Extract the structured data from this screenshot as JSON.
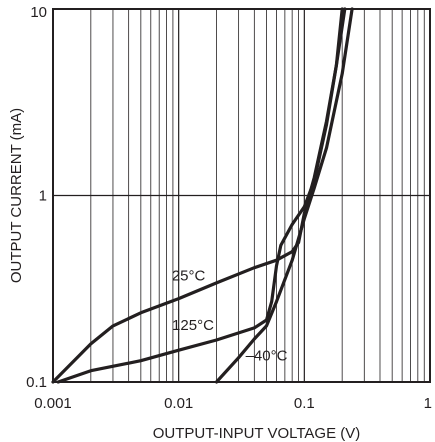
{
  "chart_data": {
    "type": "line",
    "xlabel": "OUTPUT-INPUT VOLTAGE (V)",
    "ylabel": "OUTPUT CURRENT (mA)",
    "x_scale": "log",
    "y_scale": "log",
    "xlim": [
      0.001,
      1
    ],
    "ylim": [
      0.1,
      10
    ],
    "x_ticks": [
      {
        "value": 0.001,
        "label": "0.001"
      },
      {
        "value": 0.01,
        "label": "0.01"
      },
      {
        "value": 0.1,
        "label": "0.1"
      },
      {
        "value": 1,
        "label": "1"
      }
    ],
    "y_ticks": [
      {
        "value": 0.1,
        "label": "0.1"
      },
      {
        "value": 1,
        "label": "1"
      },
      {
        "value": 10,
        "label": "10"
      }
    ],
    "grid": true,
    "series": [
      {
        "name": "25°C",
        "points": [
          [
            0.001,
            0.1
          ],
          [
            0.002,
            0.16
          ],
          [
            0.003,
            0.2
          ],
          [
            0.005,
            0.235
          ],
          [
            0.01,
            0.28
          ],
          [
            0.02,
            0.34
          ],
          [
            0.04,
            0.41
          ],
          [
            0.06,
            0.45
          ],
          [
            0.08,
            0.5
          ],
          [
            0.09,
            0.56
          ],
          [
            0.1,
            0.8
          ],
          [
            0.12,
            1.25
          ],
          [
            0.15,
            2.5
          ],
          [
            0.18,
            5.0
          ],
          [
            0.21,
            10.0
          ]
        ]
      },
      {
        "name": "125°C",
        "points": [
          [
            0.0011,
            0.1
          ],
          [
            0.002,
            0.115
          ],
          [
            0.005,
            0.13
          ],
          [
            0.01,
            0.148
          ],
          [
            0.02,
            0.168
          ],
          [
            0.04,
            0.195
          ],
          [
            0.05,
            0.215
          ],
          [
            0.055,
            0.27
          ],
          [
            0.06,
            0.42
          ],
          [
            0.065,
            0.54
          ],
          [
            0.08,
            0.7
          ],
          [
            0.1,
            0.87
          ],
          [
            0.12,
            1.2
          ],
          [
            0.15,
            2.4
          ],
          [
            0.18,
            5.0
          ],
          [
            0.2,
            10.0
          ]
        ]
      },
      {
        "name": "-40°C",
        "points": [
          [
            0.02,
            0.1
          ],
          [
            0.03,
            0.135
          ],
          [
            0.04,
            0.17
          ],
          [
            0.05,
            0.2
          ],
          [
            0.06,
            0.27
          ],
          [
            0.08,
            0.45
          ],
          [
            0.1,
            0.75
          ],
          [
            0.12,
            1.1
          ],
          [
            0.15,
            1.8
          ],
          [
            0.2,
            4.5
          ],
          [
            0.24,
            10.0
          ]
        ]
      }
    ],
    "annotations": [
      {
        "text": "25°C",
        "x": 0.012,
        "y": 0.35
      },
      {
        "text": "125°C",
        "x": 0.013,
        "y": 0.19
      },
      {
        "text": "–40°C",
        "x": 0.05,
        "y": 0.13
      }
    ]
  }
}
